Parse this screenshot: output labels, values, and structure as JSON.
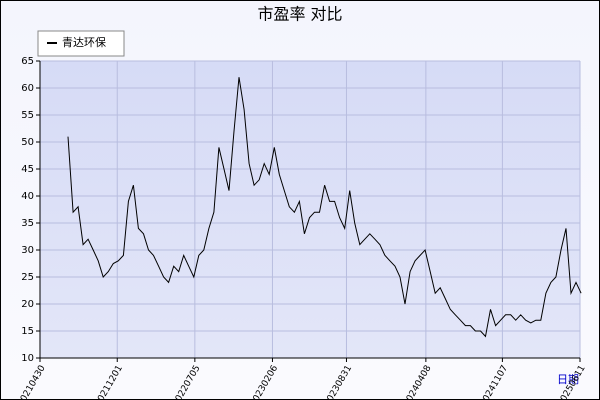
{
  "chart_data": {
    "type": "line",
    "title": "市盈率  对比",
    "x_label": "日期",
    "xlim": [
      "2021-04-30",
      "2025-06-11"
    ],
    "xticks": [
      "20210430",
      "20211201",
      "20220705",
      "20230206",
      "20230831",
      "20240408",
      "20241107",
      "20250611"
    ],
    "ylim": [
      10,
      65
    ],
    "yticks": [
      10,
      15,
      20,
      25,
      30,
      35,
      40,
      45,
      50,
      55,
      60,
      65
    ],
    "grid": true,
    "legend": "top-left",
    "x": [
      "2021-07-17",
      "2021-07-31",
      "2021-08-14",
      "2021-08-28",
      "2021-09-11",
      "2021-09-25",
      "2021-10-09",
      "2021-10-23",
      "2021-11-06",
      "2021-11-20",
      "2021-12-04",
      "2021-12-18",
      "2022-01-01",
      "2022-01-15",
      "2022-01-29",
      "2022-02-12",
      "2022-02-26",
      "2022-03-12",
      "2022-03-26",
      "2022-04-09",
      "2022-04-23",
      "2022-05-07",
      "2022-05-21",
      "2022-06-04",
      "2022-06-18",
      "2022-07-02",
      "2022-07-16",
      "2022-07-30",
      "2022-08-13",
      "2022-08-27",
      "2022-09-10",
      "2022-09-24",
      "2022-10-08",
      "2022-10-22",
      "2022-11-05",
      "2022-11-19",
      "2022-12-03",
      "2022-12-17",
      "2022-12-31",
      "2023-01-14",
      "2023-01-28",
      "2023-02-11",
      "2023-02-25",
      "2023-03-11",
      "2023-03-25",
      "2023-04-08",
      "2023-04-22",
      "2023-05-06",
      "2023-05-20",
      "2023-06-03",
      "2023-06-17",
      "2023-07-01",
      "2023-07-15",
      "2023-07-29",
      "2023-08-12",
      "2023-08-26",
      "2023-09-09",
      "2023-09-23",
      "2023-10-07",
      "2023-10-21",
      "2023-11-04",
      "2023-11-18",
      "2023-12-02",
      "2023-12-16",
      "2023-12-30",
      "2024-01-13",
      "2024-01-27",
      "2024-02-10",
      "2024-02-24",
      "2024-03-09",
      "2024-03-23",
      "2024-04-06",
      "2024-04-20",
      "2024-05-04",
      "2024-05-18",
      "2024-06-01",
      "2024-06-15",
      "2024-06-29",
      "2024-07-13",
      "2024-07-27",
      "2024-08-10",
      "2024-08-24",
      "2024-09-07",
      "2024-09-21",
      "2024-10-05",
      "2024-10-19",
      "2024-11-02",
      "2024-11-16",
      "2024-11-30",
      "2024-12-14",
      "2024-12-28",
      "2025-01-11",
      "2025-01-25",
      "2025-02-08",
      "2025-02-22",
      "2025-03-08",
      "2025-03-22",
      "2025-04-05",
      "2025-04-19",
      "2025-05-03",
      "2025-05-17",
      "2025-05-31",
      "2025-06-14"
    ],
    "series": [
      {
        "name": "青达环保",
        "color": "#000000",
        "values": [
          51,
          37,
          38,
          31,
          32,
          30,
          28,
          25,
          26,
          27.5,
          28,
          29,
          39,
          42,
          34,
          33,
          30,
          29,
          27,
          25,
          24,
          27,
          26,
          29,
          27,
          25,
          29,
          30,
          34,
          37,
          49,
          45,
          41,
          52,
          62,
          56,
          46,
          42,
          43,
          46,
          44,
          49,
          44,
          41,
          38,
          37,
          39,
          33,
          36,
          37,
          37,
          42,
          39,
          39,
          36,
          34,
          41,
          35,
          31,
          32,
          33,
          32,
          31,
          29,
          28,
          27,
          25,
          20,
          26,
          28,
          29,
          30,
          26,
          22,
          23,
          21,
          19,
          18,
          17,
          16,
          16,
          15,
          15,
          14,
          19,
          16,
          17,
          18,
          18,
          17,
          18,
          17,
          16.5,
          17,
          17,
          22,
          24,
          25,
          30,
          34,
          22,
          24,
          22
        ]
      }
    ]
  }
}
